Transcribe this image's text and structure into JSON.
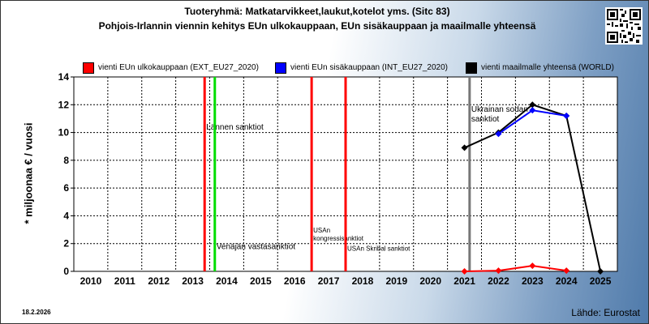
{
  "title": "Tuoteryhmä: Matkatarvikkeet,laukut,kotelot yms. (Sitc 83)",
  "subtitle": "Pohjois-Irlannin viennin kehitys EUn ulkokauppaan, EUn sisäkauppaan ja maailmalle yhteensä",
  "date": "18.2.2026",
  "source": "Lähde: Eurostat",
  "chart_data": {
    "type": "line",
    "ylabel": "* miljoonaa € / vuosi",
    "xlabel": "",
    "ylim": [
      0,
      14
    ],
    "yticks": [
      0,
      2,
      4,
      6,
      8,
      10,
      12,
      14
    ],
    "categories": [
      "2010",
      "2011",
      "2012",
      "2013",
      "2014",
      "2015",
      "2016",
      "2017",
      "2018",
      "2019",
      "2020",
      "2021",
      "2022",
      "2023",
      "2024",
      "2025"
    ],
    "grid": true,
    "legend_position": "top",
    "series": [
      {
        "name": "vienti EUn ulkokauppaan (EXT_EU27_2020)",
        "color": "#ff0000",
        "values": [
          null,
          null,
          null,
          null,
          null,
          null,
          null,
          null,
          null,
          null,
          null,
          0.0,
          0.05,
          0.4,
          0.05,
          null
        ]
      },
      {
        "name": "vienti EUn sisäkauppaan (INT_EU27_2020)",
        "color": "#0000ff",
        "values": [
          null,
          null,
          null,
          null,
          null,
          null,
          null,
          null,
          null,
          null,
          null,
          null,
          9.9,
          11.6,
          11.2,
          null
        ]
      },
      {
        "name": "vienti maailmalle yhteensä (WORLD)",
        "color": "#000000",
        "values": [
          null,
          null,
          null,
          null,
          null,
          null,
          null,
          null,
          null,
          null,
          null,
          8.9,
          10.0,
          12.0,
          11.2,
          0.0
        ]
      }
    ],
    "annotations": [
      {
        "year": 2013.85,
        "color": "#ff0000",
        "text": "Lännen sanktiot",
        "text_y": 10.2,
        "font": 10
      },
      {
        "year": 2014.15,
        "color": "#00dd00",
        "text": "Venäjän vastasanktiot",
        "text_y": 1.6,
        "font": 10
      },
      {
        "year": 2017.0,
        "color": "#ff0000",
        "text": "USAn\nkongressisanktiot",
        "text_y": 2.8,
        "font": 8
      },
      {
        "year": 2018.0,
        "color": "#ff0000",
        "text": "USAn Skribal sanktiot",
        "text_y": 1.5,
        "font": 8
      },
      {
        "year": 2021.65,
        "color": "#777777",
        "text": "Ukrainan sodan\nsanktiot",
        "text_y": 11.5,
        "font": 10
      }
    ]
  }
}
